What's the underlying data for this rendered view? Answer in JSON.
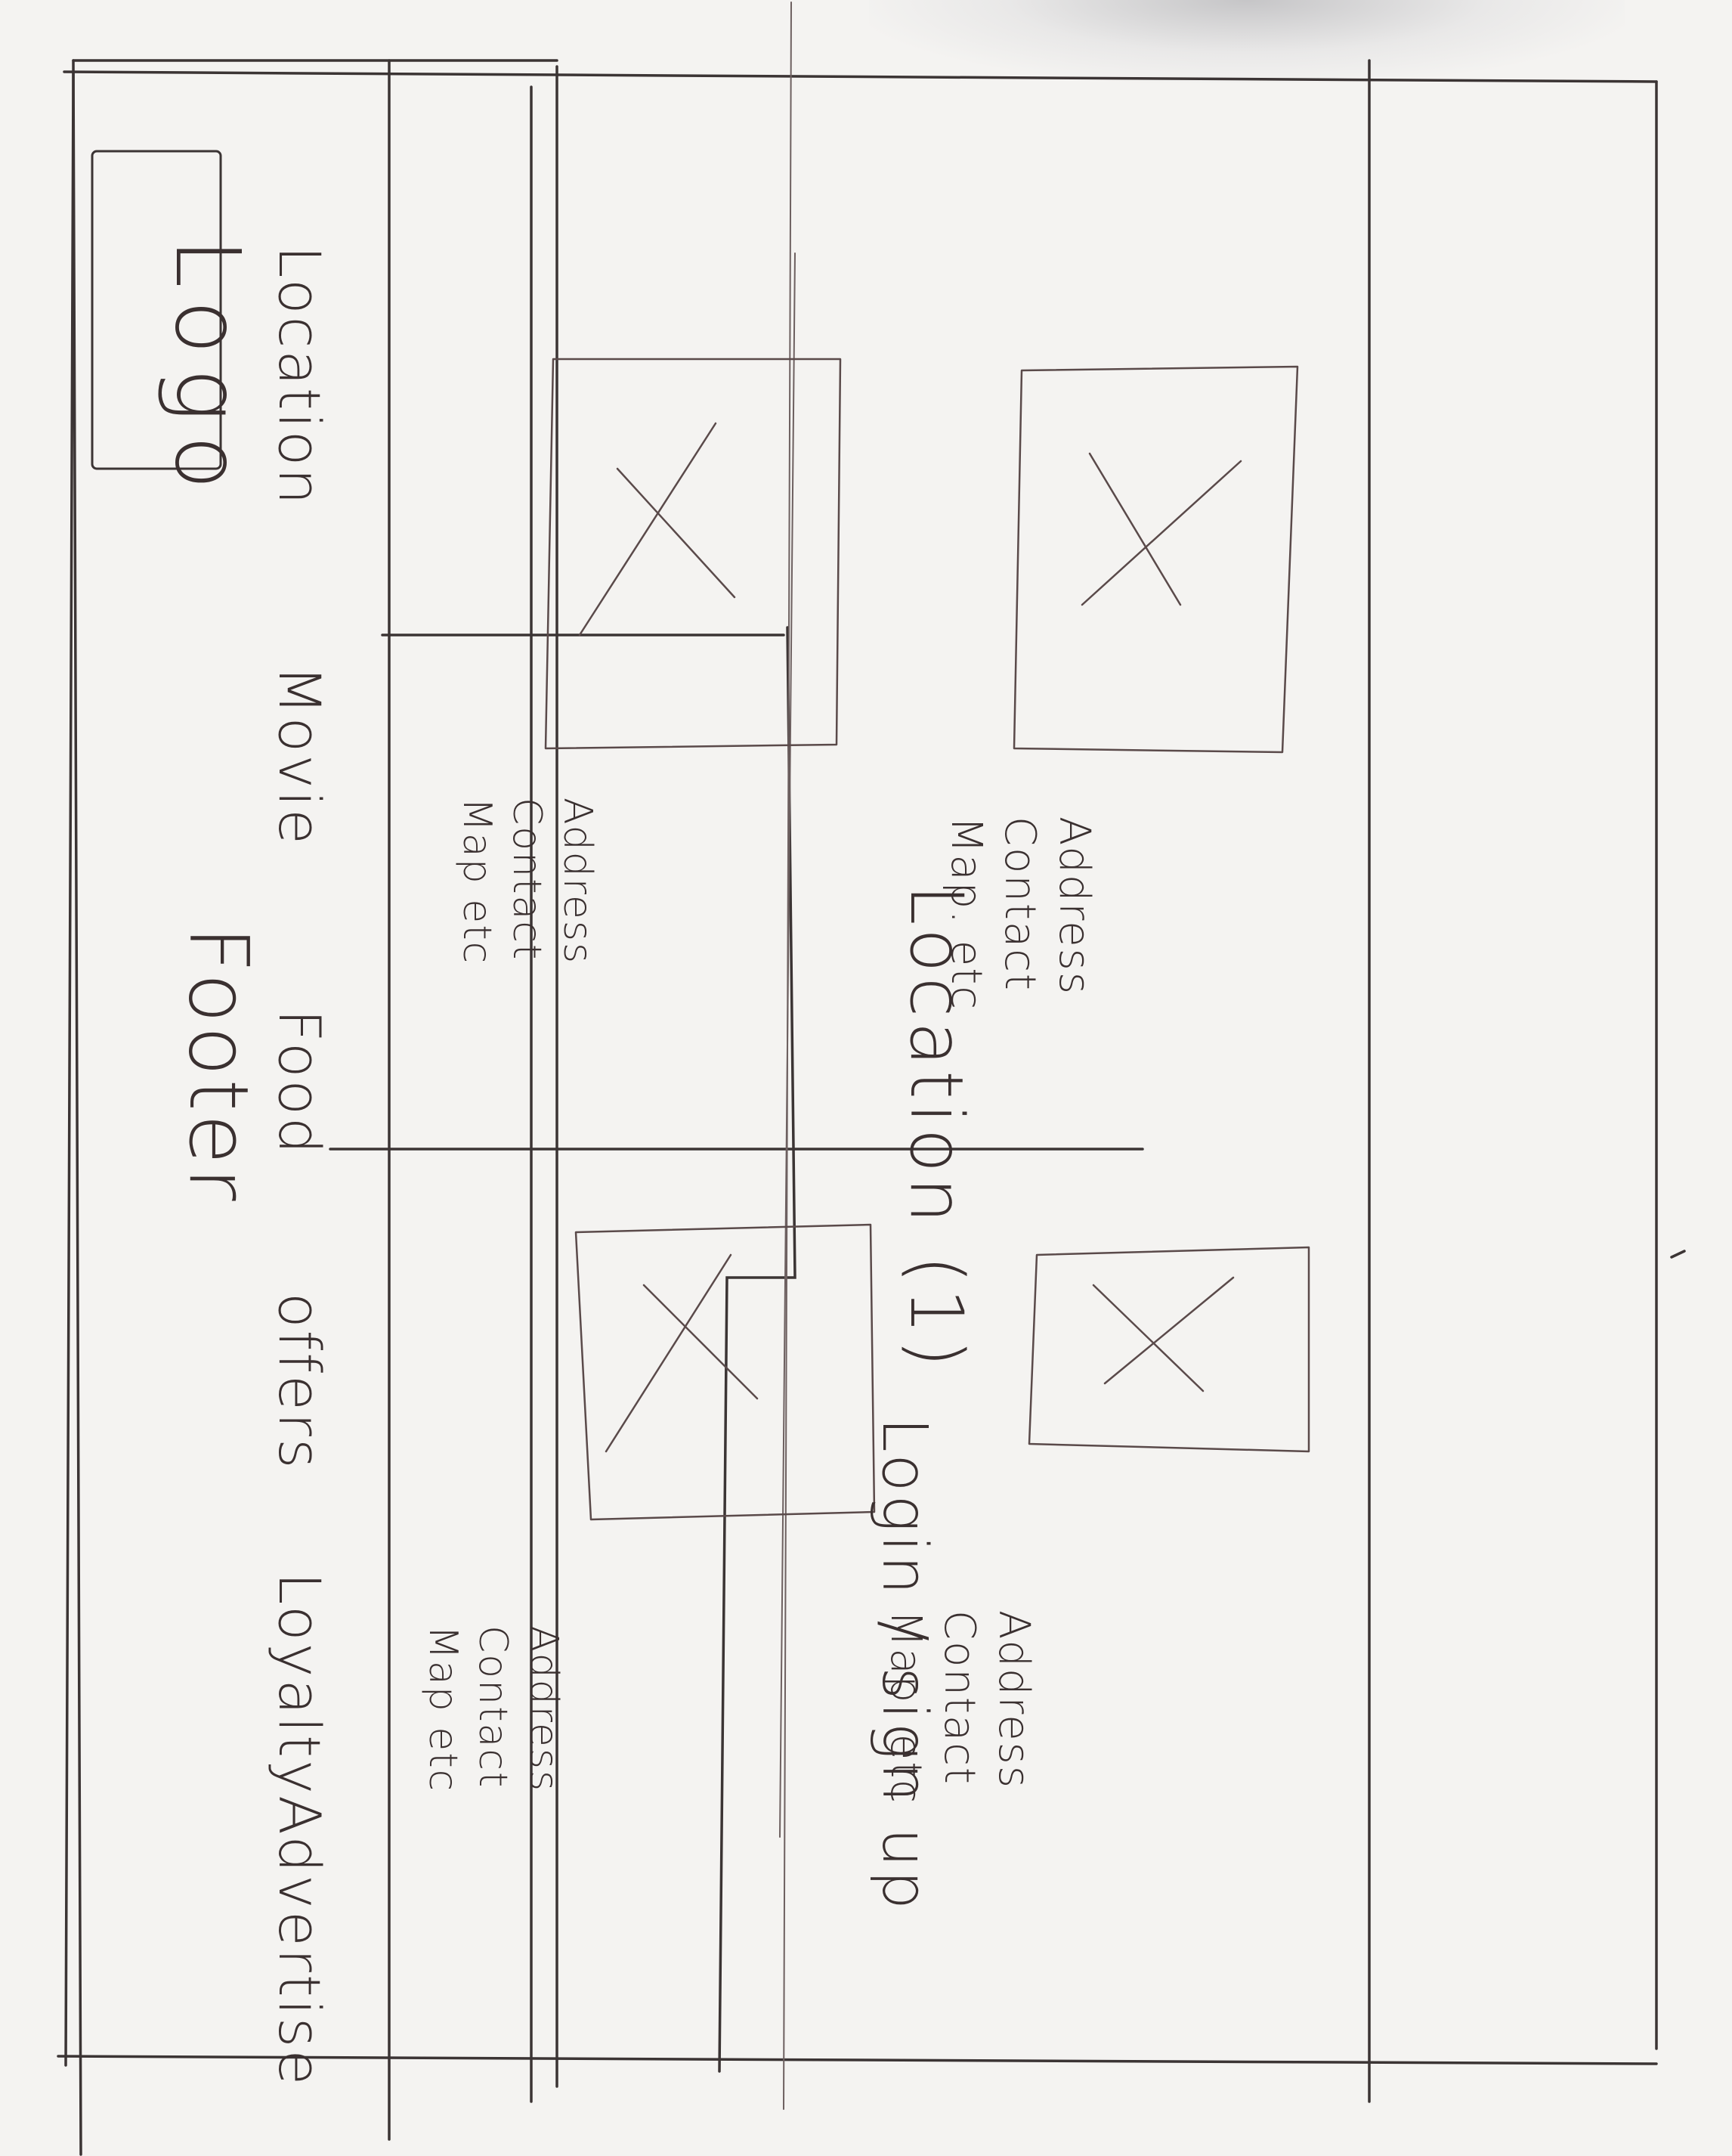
{
  "header": {
    "logo": "Logo",
    "title": "Location (1)",
    "login": "Login / sign up"
  },
  "nav": {
    "items": [
      "Location",
      "Movie",
      "Food",
      "offers",
      "Loyalty",
      "Advertise"
    ]
  },
  "cards": [
    {
      "lines": [
        "Address",
        "Contact",
        "Map. etc"
      ]
    },
    {
      "lines": [
        "Address",
        "Contact",
        "Map etc"
      ]
    },
    {
      "lines": [
        "Address",
        "Contact",
        "Map. etc"
      ]
    },
    {
      "lines": [
        "Address",
        "Contact",
        "Map etc"
      ]
    }
  ],
  "footer": {
    "label": "Footer"
  }
}
